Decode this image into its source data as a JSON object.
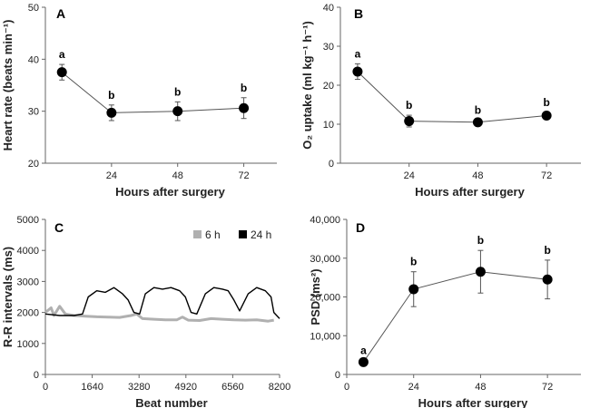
{
  "figure": {
    "colors": {
      "marker": "#000000",
      "line": "#555555",
      "axis": "#666666",
      "trace_6h": "#b0b0b0",
      "trace_24h": "#000000"
    }
  },
  "chart_data": [
    {
      "id": "A",
      "panel_label": "A",
      "type": "line",
      "xlabel": "Hours after surgery",
      "ylabel": "Heart rate (beats min⁻¹)",
      "xlim": [
        0,
        84
      ],
      "ylim": [
        20,
        50
      ],
      "x_ticks": [
        24,
        48,
        72
      ],
      "x_tick_labels": [
        "24",
        "48",
        "72"
      ],
      "y_ticks": [
        20,
        30,
        40,
        50
      ],
      "y_tick_labels": [
        "20",
        "30",
        "40",
        "50"
      ],
      "x": [
        6,
        24,
        48,
        72
      ],
      "values": [
        37.5,
        29.7,
        30.0,
        30.6
      ],
      "errors": [
        1.5,
        1.5,
        1.8,
        2.0
      ],
      "labels": [
        "a",
        "b",
        "b",
        "b"
      ]
    },
    {
      "id": "B",
      "panel_label": "B",
      "type": "line",
      "xlabel": "Hours after surgery",
      "ylabel": "O₂ uptake (ml kg⁻¹ h⁻¹)",
      "xlim": [
        0,
        84
      ],
      "ylim": [
        0,
        40
      ],
      "x_ticks": [
        24,
        48,
        72
      ],
      "x_tick_labels": [
        "24",
        "48",
        "72"
      ],
      "y_ticks": [
        0,
        10,
        20,
        30,
        40
      ],
      "y_tick_labels": [
        "0",
        "10",
        "20",
        "30",
        "40"
      ],
      "x": [
        6,
        24,
        48,
        72
      ],
      "values": [
        23.5,
        10.8,
        10.5,
        12.2
      ],
      "errors": [
        2.0,
        1.5,
        0.6,
        0.8
      ],
      "labels": [
        "a",
        "b",
        "b",
        "b"
      ]
    },
    {
      "id": "C",
      "panel_label": "C",
      "type": "line",
      "xlabel": "Beat  number",
      "ylabel": "R-R intervals (ms)",
      "xlim": [
        0,
        8200
      ],
      "ylim": [
        0,
        5000
      ],
      "x_ticks": [
        0,
        1640,
        3280,
        4920,
        6560,
        8200
      ],
      "x_tick_labels": [
        "0",
        "1640",
        "3280",
        "4920",
        "6560",
        "8200"
      ],
      "y_ticks": [
        0,
        1000,
        2000,
        3000,
        4000,
        5000
      ],
      "y_tick_labels": [
        "0",
        "1000",
        "2000",
        "3000",
        "4000",
        "5000"
      ],
      "legend": "top-right",
      "series": [
        {
          "name": "6 h",
          "color": "#b0b0b0",
          "x": [
            0,
            200,
            300,
            500,
            700,
            1000,
            1400,
            1800,
            2200,
            2600,
            3000,
            3200,
            3400,
            3800,
            4200,
            4600,
            4800,
            5000,
            5400,
            5800,
            6200,
            6600,
            7000,
            7400,
            7800,
            8000
          ],
          "y": [
            2000,
            2150,
            1900,
            2200,
            1950,
            1900,
            1880,
            1860,
            1850,
            1840,
            1900,
            1950,
            1800,
            1780,
            1760,
            1760,
            1850,
            1750,
            1740,
            1800,
            1780,
            1760,
            1750,
            1760,
            1720,
            1750
          ]
        },
        {
          "name": "24 h",
          "color": "#000000",
          "x": [
            0,
            500,
            1000,
            1300,
            1500,
            1800,
            2100,
            2400,
            2700,
            2900,
            3100,
            3300,
            3500,
            3800,
            4100,
            4400,
            4700,
            4900,
            5100,
            5300,
            5600,
            5900,
            6200,
            6400,
            6600,
            6800,
            7100,
            7400,
            7700,
            7900,
            8000,
            8200
          ],
          "y": [
            1950,
            1900,
            1900,
            1950,
            2500,
            2700,
            2650,
            2800,
            2600,
            2400,
            2000,
            1950,
            2600,
            2800,
            2750,
            2800,
            2700,
            2500,
            2000,
            1950,
            2600,
            2800,
            2750,
            2700,
            2400,
            2050,
            2600,
            2800,
            2700,
            2500,
            2000,
            1800
          ]
        }
      ]
    },
    {
      "id": "D",
      "panel_label": "D",
      "type": "line",
      "xlabel": "Hours after surgery",
      "ylabel": "PSD  (ms²)",
      "xlim": [
        0,
        84
      ],
      "ylim": [
        0,
        40000
      ],
      "x_ticks": [
        0,
        24,
        48,
        72
      ],
      "x_tick_labels": [
        "0",
        "24",
        "48",
        "72"
      ],
      "y_ticks": [
        0,
        10000,
        20000,
        30000,
        40000
      ],
      "y_tick_labels": [
        "0",
        "10,000",
        "20,000",
        "30,000",
        "40,000"
      ],
      "x": [
        6,
        24,
        48,
        72
      ],
      "values": [
        3200,
        22000,
        26500,
        24500
      ],
      "errors": [
        400,
        4500,
        5500,
        5000
      ],
      "labels": [
        "a",
        "b",
        "b",
        "b"
      ]
    }
  ]
}
